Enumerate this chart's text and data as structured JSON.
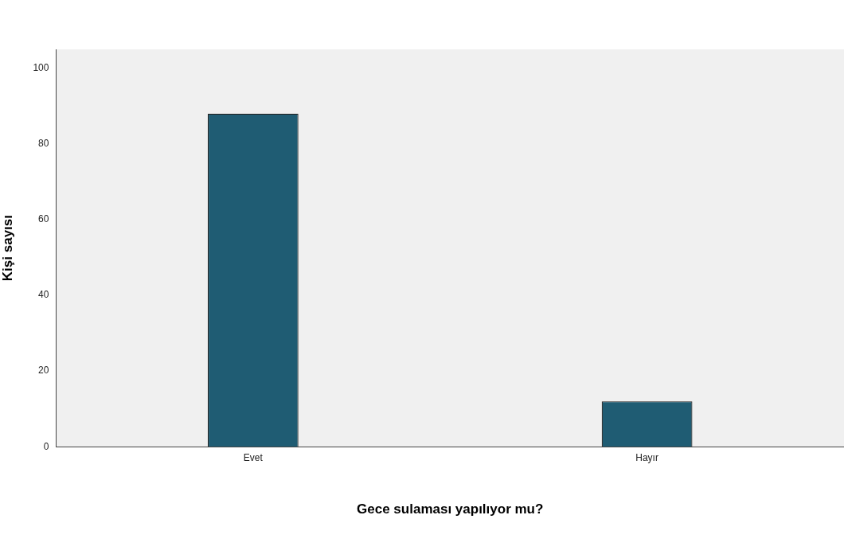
{
  "chart_data": {
    "type": "bar",
    "xlabel": "Gece sulaması yapılıyor mu?",
    "ylabel": "Kişi sayısı",
    "categories": [
      "Evet",
      "Hayır"
    ],
    "values": [
      88,
      12
    ],
    "color": "#1f5c73",
    "ylim": [
      0,
      105
    ],
    "yticks": [
      0,
      20,
      40,
      60,
      80,
      100
    ],
    "grid": false,
    "legend": false
  }
}
